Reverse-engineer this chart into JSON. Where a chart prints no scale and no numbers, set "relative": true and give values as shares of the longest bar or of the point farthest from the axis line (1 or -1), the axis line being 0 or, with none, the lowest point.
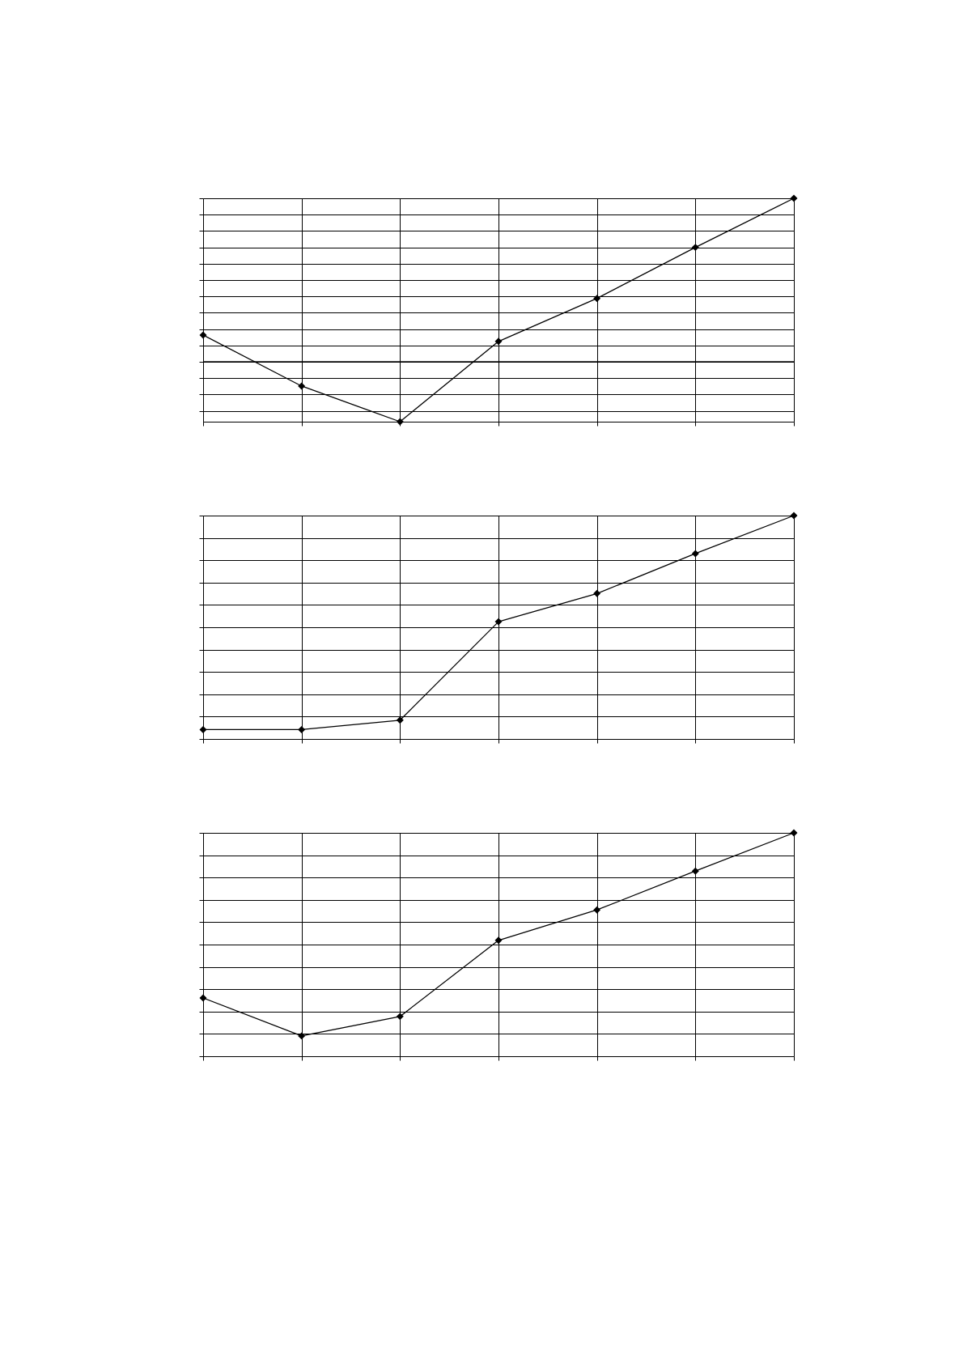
{
  "chart_data": [
    {
      "type": "line",
      "relative": true,
      "categories": [
        null,
        null,
        null,
        null,
        null,
        null,
        null
      ],
      "series": [
        {
          "color": "#000000",
          "values": [
            0.164,
            -0.148,
            -0.366,
            0.125,
            0.388,
            0.7,
            1
          ]
        }
      ],
      "marker": "diamond",
      "line_style": "solid",
      "grid": true,
      "tick_labels": false
    },
    {
      "type": "line",
      "relative": true,
      "categories": [
        null,
        null,
        null,
        null,
        null,
        null,
        null
      ],
      "series": [
        {
          "color": "#000000",
          "values": [
            0.042,
            0.042,
            0.084,
            0.525,
            0.651,
            0.83,
            1
          ]
        }
      ],
      "marker": "diamond",
      "line_style": "solid",
      "grid": true,
      "tick_labels": false
    },
    {
      "type": "line",
      "relative": true,
      "categories": [
        null,
        null,
        null,
        null,
        null,
        null,
        null
      ],
      "series": [
        {
          "color": "#000000",
          "values": [
            0.261,
            0.091,
            0.178,
            0.519,
            0.655,
            0.829,
            1
          ]
        }
      ],
      "marker": "diamond",
      "line_style": "solid",
      "grid": true,
      "tick_labels": false
    }
  ]
}
